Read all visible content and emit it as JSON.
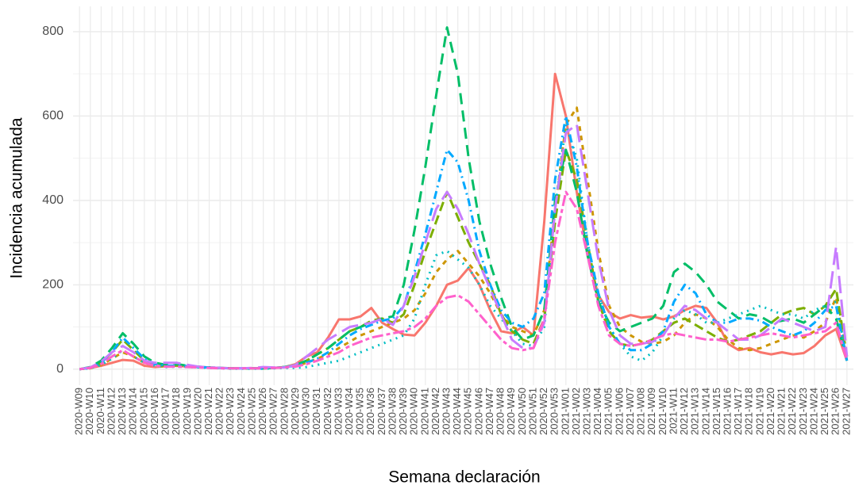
{
  "chart_data": {
    "type": "line",
    "xlabel": "Semana declaración",
    "ylabel": "Incidencia acumulada",
    "categories": [
      "2020-W09",
      "2020-W10",
      "2020-W11",
      "2020-W12",
      "2020-W13",
      "2020-W14",
      "2020-W15",
      "2020-W16",
      "2020-W17",
      "2020-W18",
      "2020-W19",
      "2020-W20",
      "2020-W21",
      "2020-W22",
      "2020-W23",
      "2020-W24",
      "2020-W25",
      "2020-W26",
      "2020-W27",
      "2020-W28",
      "2020-W29",
      "2020-W30",
      "2020-W31",
      "2020-W32",
      "2020-W33",
      "2020-W34",
      "2020-W35",
      "2020-W36",
      "2020-W37",
      "2020-W38",
      "2020-W39",
      "2020-W40",
      "2020-W41",
      "2020-W42",
      "2020-W43",
      "2020-W44",
      "2020-W45",
      "2020-W46",
      "2020-W47",
      "2020-W48",
      "2020-W49",
      "2020-W50",
      "2020-W51",
      "2020-W52",
      "2020-W53",
      "2021-W01",
      "2021-W02",
      "2021-W03",
      "2021-W04",
      "2021-W05",
      "2021-W06",
      "2021-W07",
      "2021-W08",
      "2021-W09",
      "2021-W10",
      "2021-W11",
      "2021-W12",
      "2021-W13",
      "2021-W14",
      "2021-W15",
      "2021-W16",
      "2021-W17",
      "2021-W18",
      "2021-W19",
      "2021-W20",
      "2021-W21",
      "2021-W22",
      "2021-W23",
      "2021-W24",
      "2021-W25",
      "2021-W26",
      "2021-W27"
    ],
    "series": [
      {
        "color": "#F8766D",
        "dash": "none",
        "values": [
          0,
          3,
          8,
          15,
          22,
          20,
          8,
          5,
          7,
          8,
          6,
          5,
          4,
          3,
          2,
          2,
          2,
          2,
          3,
          5,
          12,
          30,
          40,
          75,
          118,
          118,
          125,
          145,
          110,
          95,
          82,
          80,
          110,
          150,
          200,
          210,
          240,
          200,
          140,
          90,
          85,
          100,
          80,
          350,
          700,
          600,
          420,
          270,
          175,
          135,
          120,
          128,
          122,
          125,
          118,
          125,
          140,
          150,
          145,
          110,
          60,
          45,
          50,
          40,
          35,
          40,
          35,
          38,
          55,
          80,
          95,
          20
        ]
      },
      {
        "color": "#CD9600",
        "dash": "6 6",
        "values": [
          0,
          2,
          10,
          25,
          40,
          30,
          15,
          8,
          6,
          8,
          6,
          5,
          4,
          3,
          2,
          2,
          2,
          2,
          3,
          5,
          8,
          15,
          25,
          35,
          50,
          65,
          80,
          90,
          100,
          110,
          120,
          140,
          180,
          230,
          260,
          280,
          250,
          220,
          180,
          130,
          100,
          90,
          80,
          140,
          380,
          580,
          620,
          450,
          280,
          150,
          100,
          80,
          65,
          60,
          65,
          80,
          110,
          130,
          120,
          100,
          70,
          50,
          45,
          50,
          60,
          70,
          80,
          75,
          90,
          110,
          170,
          20
        ]
      },
      {
        "color": "#7CAE00",
        "dash": "12 6",
        "values": [
          0,
          3,
          15,
          40,
          70,
          45,
          20,
          10,
          8,
          9,
          7,
          5,
          4,
          3,
          2,
          2,
          2,
          2,
          3,
          5,
          10,
          20,
          35,
          50,
          70,
          90,
          100,
          115,
          120,
          110,
          130,
          200,
          280,
          350,
          420,
          360,
          300,
          250,
          200,
          130,
          90,
          70,
          60,
          120,
          350,
          520,
          450,
          300,
          160,
          90,
          60,
          55,
          60,
          70,
          90,
          110,
          120,
          105,
          90,
          75,
          65,
          70,
          80,
          90,
          110,
          130,
          140,
          145,
          130,
          150,
          190,
          30
        ]
      },
      {
        "color": "#00BE67",
        "dash": "14 8",
        "values": [
          0,
          5,
          20,
          50,
          85,
          60,
          30,
          15,
          10,
          12,
          8,
          6,
          4,
          3,
          2,
          2,
          2,
          2,
          3,
          5,
          10,
          20,
          35,
          50,
          70,
          90,
          100,
          110,
          120,
          125,
          200,
          330,
          480,
          650,
          810,
          700,
          500,
          350,
          250,
          170,
          100,
          70,
          80,
          140,
          400,
          520,
          420,
          270,
          160,
          110,
          90,
          100,
          110,
          120,
          150,
          230,
          250,
          230,
          200,
          160,
          140,
          120,
          130,
          125,
          110,
          115,
          120,
          110,
          130,
          150,
          120,
          20
        ]
      },
      {
        "color": "#00BFC4",
        "dash": "2 6",
        "values": [
          0,
          2,
          10,
          25,
          45,
          30,
          15,
          8,
          5,
          6,
          5,
          4,
          3,
          2,
          1,
          1,
          1,
          1,
          2,
          3,
          3,
          5,
          10,
          15,
          20,
          30,
          40,
          50,
          60,
          70,
          80,
          120,
          200,
          270,
          280,
          260,
          240,
          200,
          150,
          120,
          90,
          60,
          55,
          100,
          380,
          580,
          500,
          300,
          180,
          100,
          60,
          30,
          20,
          40,
          80,
          120,
          140,
          130,
          110,
          110,
          120,
          130,
          140,
          150,
          140,
          130,
          130,
          120,
          140,
          150,
          160,
          20
        ]
      },
      {
        "color": "#00A9FF",
        "dash": "2 5 10 5",
        "values": [
          0,
          3,
          15,
          40,
          75,
          50,
          25,
          12,
          8,
          8,
          7,
          5,
          4,
          3,
          2,
          2,
          2,
          2,
          3,
          5,
          8,
          15,
          25,
          40,
          60,
          80,
          95,
          105,
          115,
          120,
          150,
          230,
          320,
          420,
          520,
          490,
          400,
          280,
          200,
          140,
          110,
          100,
          120,
          180,
          450,
          600,
          480,
          300,
          180,
          100,
          60,
          45,
          45,
          60,
          90,
          160,
          200,
          180,
          130,
          110,
          110,
          120,
          120,
          115,
          100,
          90,
          80,
          90,
          110,
          140,
          150,
          20
        ]
      },
      {
        "color": "#C77CFF",
        "dash": "22 8",
        "values": [
          0,
          4,
          18,
          40,
          55,
          40,
          20,
          15,
          15,
          15,
          10,
          6,
          4,
          3,
          2,
          2,
          3,
          5,
          4,
          4,
          10,
          30,
          50,
          70,
          85,
          100,
          105,
          110,
          120,
          105,
          150,
          220,
          300,
          380,
          420,
          380,
          320,
          250,
          190,
          130,
          70,
          50,
          50,
          110,
          380,
          560,
          580,
          420,
          260,
          140,
          80,
          60,
          60,
          65,
          80,
          120,
          150,
          140,
          120,
          110,
          90,
          70,
          70,
          80,
          100,
          120,
          110,
          100,
          90,
          100,
          290,
          30
        ]
      },
      {
        "color": "#FF61CC",
        "dash": "5 4 14 4",
        "values": [
          0,
          3,
          12,
          30,
          45,
          30,
          15,
          8,
          6,
          6,
          5,
          4,
          3,
          2,
          2,
          2,
          2,
          2,
          3,
          4,
          6,
          12,
          20,
          30,
          40,
          55,
          65,
          75,
          80,
          85,
          90,
          100,
          120,
          150,
          170,
          175,
          160,
          130,
          100,
          70,
          50,
          45,
          50,
          120,
          300,
          420,
          380,
          270,
          150,
          80,
          60,
          55,
          60,
          70,
          80,
          85,
          80,
          75,
          70,
          70,
          65,
          70,
          75,
          80,
          85,
          80,
          75,
          80,
          85,
          90,
          110,
          20
        ]
      }
    ],
    "ylim": [
      -38,
      860
    ],
    "yticks": [
      0,
      200,
      400,
      600,
      800
    ],
    "grid": true
  }
}
